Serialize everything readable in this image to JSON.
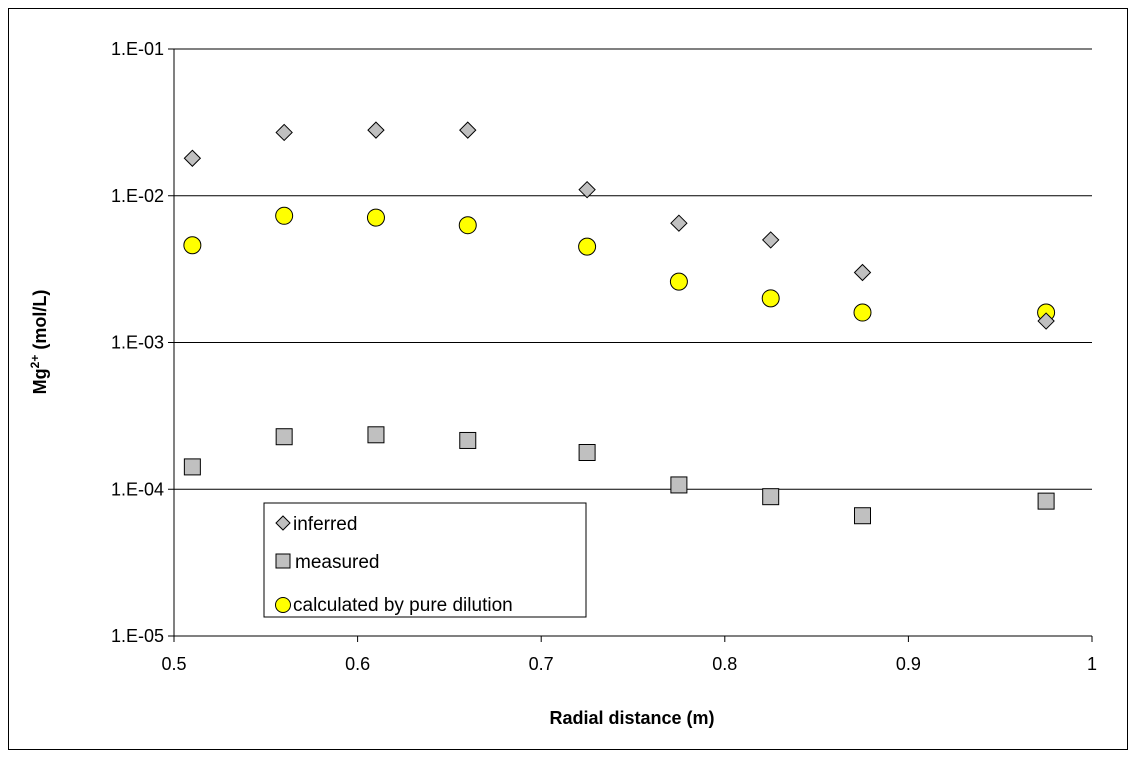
{
  "chart_data": {
    "type": "scatter",
    "xlabel": "Radial distance (m)",
    "ylabel": {
      "main": "Mg",
      "sup": "2+",
      "rest": " (mol/L)"
    },
    "xlim": [
      0.5,
      1
    ],
    "ylim": [
      1e-05,
      0.1
    ],
    "y_scale": "log",
    "grid": "horizontal",
    "legend_placement": "bottom-left inside plot",
    "x_ticks": [
      {
        "value": 0.5,
        "label": "0.5"
      },
      {
        "value": 0.6,
        "label": "0.6"
      },
      {
        "value": 0.7,
        "label": "0.7"
      },
      {
        "value": 0.8,
        "label": "0.8"
      },
      {
        "value": 0.9,
        "label": "0.9"
      },
      {
        "value": 1.0,
        "label": "1"
      }
    ],
    "y_ticks": [
      {
        "value": 0.1,
        "label": "1.E-01"
      },
      {
        "value": 0.01,
        "label": "1.E-02"
      },
      {
        "value": 0.001,
        "label": "1.E-03"
      },
      {
        "value": 0.0001,
        "label": "1.E-04"
      },
      {
        "value": 1e-05,
        "label": "1.E-05"
      }
    ],
    "series": [
      {
        "name": "inferred",
        "marker": "diamond",
        "color": "#c0c0c0",
        "x": [
          0.51,
          0.56,
          0.61,
          0.66,
          0.725,
          0.775,
          0.825,
          0.875,
          0.975
        ],
        "y": [
          0.018,
          0.027,
          0.028,
          0.028,
          0.011,
          0.0065,
          0.005,
          0.003,
          0.0014
        ]
      },
      {
        "name": "measured",
        "marker": "square",
        "color": "#c0c0c0",
        "x": [
          0.51,
          0.56,
          0.61,
          0.66,
          0.725,
          0.775,
          0.825,
          0.875,
          0.975
        ],
        "y": [
          0.000142,
          0.000228,
          0.000235,
          0.000215,
          0.000178,
          0.000107,
          8.9e-05,
          6.6e-05,
          8.3e-05
        ]
      },
      {
        "name": "calculated by pure dilution",
        "marker": "circle",
        "color": "#ffff00",
        "x": [
          0.51,
          0.56,
          0.61,
          0.66,
          0.725,
          0.775,
          0.825,
          0.875,
          0.975
        ],
        "y": [
          0.0046,
          0.0073,
          0.0071,
          0.0063,
          0.0045,
          0.0026,
          0.002,
          0.0016,
          0.0016
        ]
      }
    ]
  }
}
